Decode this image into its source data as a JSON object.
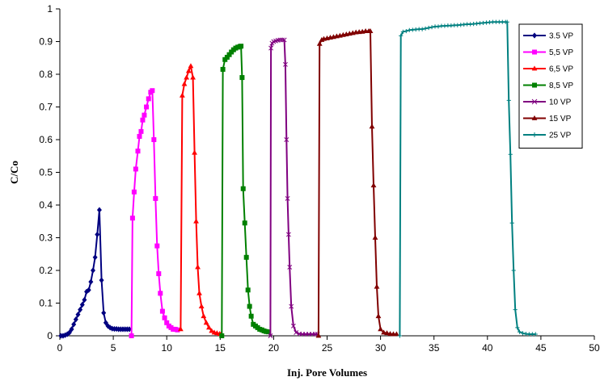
{
  "chart_data": {
    "type": "line",
    "title": "",
    "xlabel": "Inj. Pore Volumes",
    "ylabel": "C/Co",
    "xlim": [
      0,
      50
    ],
    "ylim": [
      0,
      1
    ],
    "xticks": [
      "0",
      "5",
      "10",
      "15",
      "20",
      "25",
      "30",
      "35",
      "40",
      "45",
      "50"
    ],
    "yticks": [
      "0",
      "0.1",
      "0.2",
      "0.3",
      "0.4",
      "0.5",
      "0.6",
      "0.7",
      "0.8",
      "0.9",
      "1"
    ],
    "grid": false,
    "legend_position": "right",
    "series": [
      {
        "name": "3.5 VP",
        "color": "#000080",
        "marker": "diamond",
        "x": [
          0.1,
          0.3,
          0.5,
          0.7,
          0.9,
          1.1,
          1.3,
          1.5,
          1.7,
          1.9,
          2.1,
          2.3,
          2.5,
          2.7,
          2.9,
          3.1,
          3.3,
          3.5,
          3.7,
          3.9,
          4.1,
          4.3,
          4.5,
          4.7,
          4.9,
          5.1,
          5.3,
          5.5,
          5.7,
          5.9,
          6.1,
          6.3,
          6.5
        ],
        "y": [
          0.0,
          0.0,
          0.002,
          0.005,
          0.01,
          0.02,
          0.035,
          0.05,
          0.065,
          0.08,
          0.095,
          0.11,
          0.135,
          0.14,
          0.165,
          0.2,
          0.24,
          0.31,
          0.385,
          0.17,
          0.07,
          0.04,
          0.03,
          0.025,
          0.022,
          0.021,
          0.021,
          0.02,
          0.02,
          0.02,
          0.02,
          0.02,
          0.02
        ]
      },
      {
        "name": "5,5 VP",
        "color": "#FF00FF",
        "marker": "square",
        "x": [
          6.7,
          6.8,
          6.95,
          7.1,
          7.3,
          7.45,
          7.6,
          7.75,
          7.9,
          8.1,
          8.3,
          8.5,
          8.65,
          8.8,
          8.95,
          9.1,
          9.25,
          9.4,
          9.6,
          9.8,
          10.0,
          10.2,
          10.4,
          10.6,
          10.8,
          11.0
        ],
        "y": [
          0.0,
          0.36,
          0.44,
          0.51,
          0.565,
          0.61,
          0.625,
          0.66,
          0.675,
          0.7,
          0.725,
          0.745,
          0.75,
          0.6,
          0.42,
          0.275,
          0.19,
          0.13,
          0.075,
          0.055,
          0.04,
          0.03,
          0.025,
          0.02,
          0.02,
          0.018
        ]
      },
      {
        "name": "6,5 VP",
        "color": "#FF0000",
        "marker": "triangle",
        "x": [
          11.3,
          11.45,
          11.65,
          11.85,
          12.05,
          12.25,
          12.45,
          12.6,
          12.75,
          12.9,
          13.05,
          13.25,
          13.45,
          13.7,
          13.95,
          14.2,
          14.45,
          14.7,
          14.95,
          15.1
        ],
        "y": [
          0.02,
          0.735,
          0.77,
          0.79,
          0.81,
          0.825,
          0.79,
          0.56,
          0.35,
          0.21,
          0.13,
          0.09,
          0.06,
          0.04,
          0.025,
          0.015,
          0.01,
          0.008,
          0.006,
          0.005
        ]
      },
      {
        "name": "8,5 VP",
        "color": "#008000",
        "marker": "square",
        "x": [
          15.15,
          15.25,
          15.45,
          15.65,
          15.85,
          16.05,
          16.25,
          16.45,
          16.65,
          16.85,
          16.95,
          17.05,
          17.15,
          17.3,
          17.45,
          17.6,
          17.75,
          17.9,
          18.1,
          18.3,
          18.5,
          18.7,
          18.9,
          19.1,
          19.3,
          19.5
        ],
        "y": [
          0.0,
          0.815,
          0.845,
          0.852,
          0.86,
          0.868,
          0.875,
          0.88,
          0.883,
          0.885,
          0.886,
          0.79,
          0.45,
          0.345,
          0.24,
          0.14,
          0.09,
          0.06,
          0.035,
          0.03,
          0.025,
          0.02,
          0.018,
          0.015,
          0.013,
          0.012
        ]
      },
      {
        "name": "10 VP",
        "color": "#800080",
        "marker": "x",
        "x": [
          19.7,
          19.75,
          19.85,
          20.0,
          20.2,
          20.4,
          20.6,
          20.8,
          21.0,
          21.1,
          21.2,
          21.3,
          21.4,
          21.5,
          21.65,
          21.85,
          22.1,
          22.4,
          22.7,
          23.0,
          23.3,
          23.6,
          23.9,
          24.1
        ],
        "y": [
          0.0,
          0.88,
          0.895,
          0.9,
          0.902,
          0.904,
          0.905,
          0.905,
          0.905,
          0.83,
          0.6,
          0.42,
          0.31,
          0.21,
          0.09,
          0.03,
          0.01,
          0.006,
          0.005,
          0.005,
          0.005,
          0.005,
          0.005,
          0.005
        ]
      },
      {
        "name": "15 VP",
        "color": "#800000",
        "marker": "triangle",
        "x": [
          24.2,
          24.3,
          24.5,
          24.7,
          25.0,
          25.3,
          25.6,
          25.9,
          26.2,
          26.5,
          26.8,
          27.1,
          27.4,
          27.7,
          28.0,
          28.3,
          28.6,
          28.9,
          29.05,
          29.2,
          29.35,
          29.5,
          29.65,
          29.8,
          30.0,
          30.3,
          30.6,
          30.9,
          31.2,
          31.5
        ],
        "y": [
          0.0,
          0.893,
          0.905,
          0.908,
          0.91,
          0.912,
          0.914,
          0.916,
          0.918,
          0.92,
          0.922,
          0.924,
          0.926,
          0.928,
          0.929,
          0.93,
          0.932,
          0.932,
          0.932,
          0.64,
          0.46,
          0.3,
          0.15,
          0.06,
          0.02,
          0.01,
          0.008,
          0.006,
          0.005,
          0.005
        ]
      },
      {
        "name": "25 VP",
        "color": "#008080",
        "marker": "plus",
        "x": [
          31.8,
          31.9,
          32.1,
          32.4,
          32.7,
          33.0,
          33.3,
          33.6,
          33.9,
          34.2,
          34.5,
          34.8,
          35.1,
          35.4,
          35.7,
          36.0,
          36.3,
          36.6,
          36.9,
          37.2,
          37.5,
          37.8,
          38.1,
          38.4,
          38.7,
          39.0,
          39.3,
          39.6,
          39.9,
          40.2,
          40.5,
          40.8,
          41.1,
          41.4,
          41.7,
          41.85,
          42.0,
          42.15,
          42.3,
          42.45,
          42.6,
          42.8,
          43.0,
          43.3,
          43.6,
          43.9,
          44.2,
          44.5
        ],
        "y": [
          0.0,
          0.918,
          0.93,
          0.932,
          0.935,
          0.936,
          0.937,
          0.938,
          0.938,
          0.94,
          0.942,
          0.944,
          0.946,
          0.946,
          0.948,
          0.948,
          0.949,
          0.949,
          0.95,
          0.95,
          0.951,
          0.952,
          0.953,
          0.953,
          0.954,
          0.955,
          0.956,
          0.957,
          0.958,
          0.959,
          0.96,
          0.96,
          0.96,
          0.96,
          0.96,
          0.96,
          0.72,
          0.555,
          0.345,
          0.2,
          0.08,
          0.025,
          0.012,
          0.008,
          0.006,
          0.005,
          0.005,
          0.005
        ]
      }
    ]
  }
}
